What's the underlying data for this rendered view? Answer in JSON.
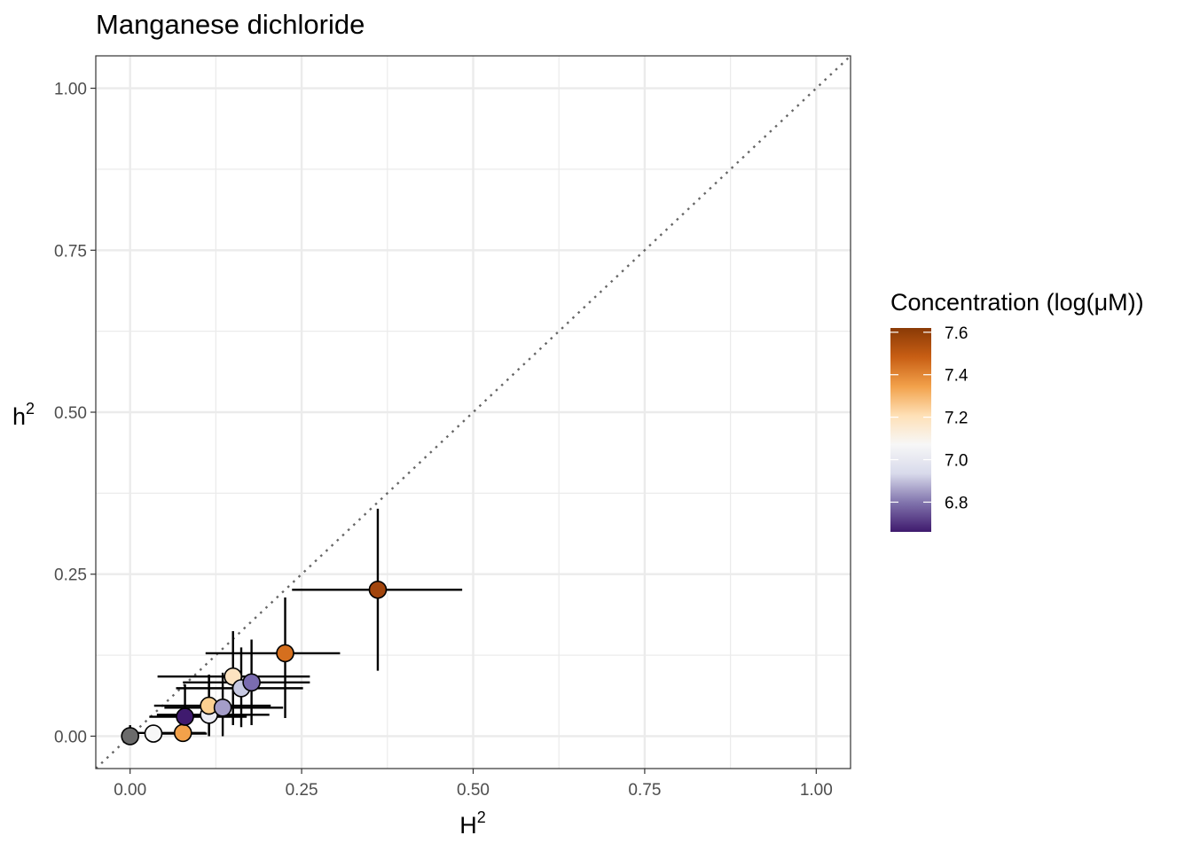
{
  "chart_data": {
    "type": "scatter",
    "title": "Manganese dichloride",
    "xlabel": "H",
    "xlabel_superscript": "2",
    "ylabel": "h",
    "ylabel_superscript": "2",
    "xlim": [
      -0.05,
      1.05
    ],
    "ylim": [
      -0.05,
      1.05
    ],
    "x_ticks": [
      0.0,
      0.25,
      0.5,
      0.75,
      1.0
    ],
    "x_tick_labels": [
      "0.00",
      "0.25",
      "0.50",
      "0.75",
      "1.00"
    ],
    "y_ticks": [
      0.0,
      0.25,
      0.5,
      0.75,
      1.0
    ],
    "y_tick_labels": [
      "0.00",
      "0.25",
      "0.50",
      "0.75",
      "1.00"
    ],
    "grid": true,
    "reference_line": "y = x (dotted)",
    "legend": {
      "title": "Concentration (log(μM))",
      "position": "right",
      "type": "colorbar",
      "range": [
        6.66,
        7.62
      ],
      "ticks": [
        6.8,
        7.0,
        7.2,
        7.4,
        7.6
      ],
      "tick_labels": [
        "6.8",
        "7.0",
        "7.2",
        "7.4",
        "7.6"
      ],
      "colors": [
        "#3f1a6e",
        "#8073ac",
        "#d8daeb",
        "#f7f7f7",
        "#fee0b6",
        "#f2a14a",
        "#c85e14",
        "#8a3a06"
      ]
    },
    "points": [
      {
        "x": 0.0,
        "y": 0.0,
        "xerr": [
          0.0,
          0.0
        ],
        "yerr": [
          0.0,
          0.017
        ],
        "color": "#6b6b6b"
      },
      {
        "x": 0.034,
        "y": 0.004,
        "xerr": [
          0.0,
          0.078
        ],
        "yerr": [
          0.0,
          0.0
        ],
        "color": "#f7f7f7"
      },
      {
        "x": 0.077,
        "y": 0.005,
        "xerr": [
          0.077,
          0.033
        ],
        "yerr": [
          0.0,
          0.0
        ],
        "color": "#f2a14a"
      },
      {
        "x": 0.08,
        "y": 0.03,
        "xerr": [
          0.052,
          0.09
        ],
        "yerr": [
          0.03,
          0.05
        ],
        "color": "#3f1a6e"
      },
      {
        "x": 0.115,
        "y": 0.033,
        "xerr": [
          0.076,
          0.088
        ],
        "yerr": [
          0.033,
          0.062
        ],
        "color": "#ececf4"
      },
      {
        "x": 0.115,
        "y": 0.047,
        "xerr": [
          0.08,
          0.09
        ],
        "yerr": [
          0.047,
          0.047
        ],
        "color": "#fcd091"
      },
      {
        "x": 0.135,
        "y": 0.044,
        "xerr": [
          0.085,
          0.088
        ],
        "yerr": [
          0.044,
          0.054
        ],
        "color": "#a49dc8"
      },
      {
        "x": 0.15,
        "y": 0.092,
        "xerr": [
          0.11,
          0.112
        ],
        "yerr": [
          0.075,
          0.07
        ],
        "color": "#fde3c0"
      },
      {
        "x": 0.162,
        "y": 0.074,
        "xerr": [
          0.095,
          0.09
        ],
        "yerr": [
          0.06,
          0.063
        ],
        "color": "#c7c9e2"
      },
      {
        "x": 0.177,
        "y": 0.083,
        "xerr": [
          0.1,
          0.085
        ],
        "yerr": [
          0.066,
          0.066
        ],
        "color": "#7a6cb0"
      },
      {
        "x": 0.226,
        "y": 0.128,
        "xerr": [
          0.116,
          0.08
        ],
        "yerr": [
          0.1,
          0.086
        ],
        "color": "#d56f1e"
      },
      {
        "x": 0.361,
        "y": 0.226,
        "xerr": [
          0.125,
          0.123
        ],
        "yerr": [
          0.125,
          0.125
        ],
        "color": "#a2450d"
      }
    ]
  }
}
